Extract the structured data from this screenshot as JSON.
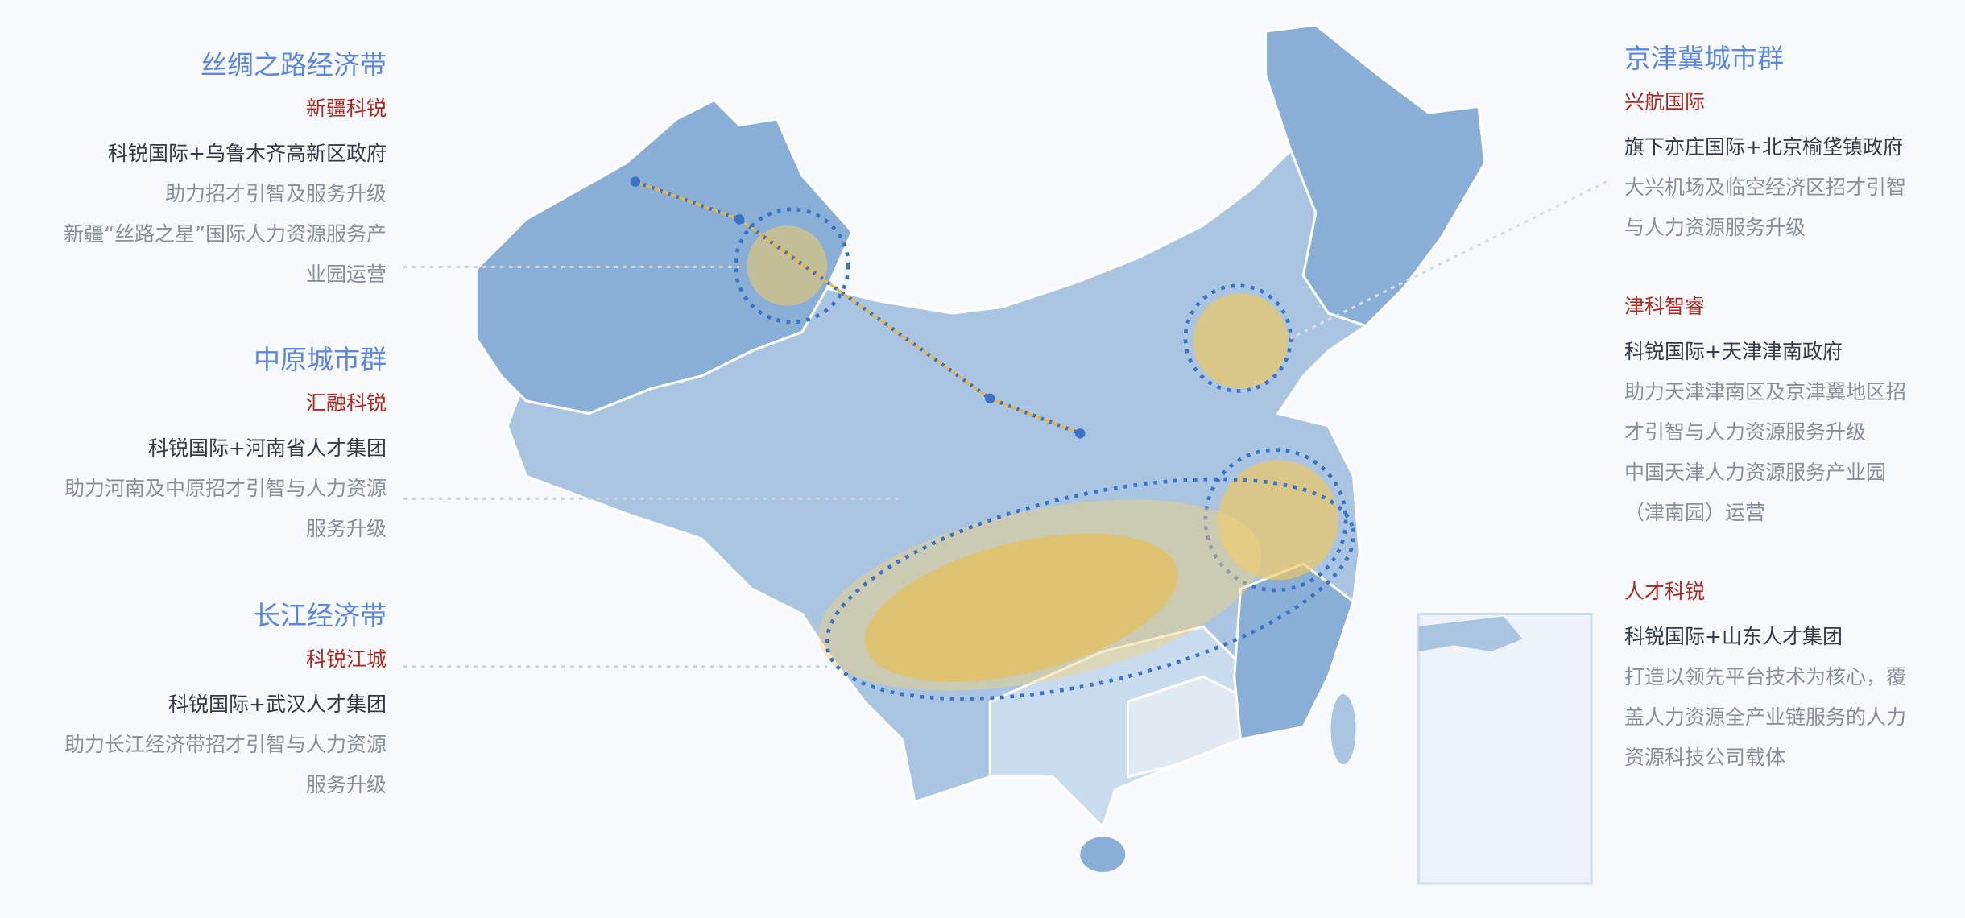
{
  "left_blocks": [
    {
      "title": "丝绸之路经济带",
      "company": "新疆科锐",
      "partner": "科锐国际+乌鲁木齐高新区政府",
      "desc": [
        "助力招才引智及服务升级",
        "新疆“丝路之星”国际人力资源服务产",
        "业园运营"
      ]
    },
    {
      "title": "中原城市群",
      "company": "汇融科锐",
      "partner": "科锐国际+河南省人才集团",
      "desc": [
        "助力河南及中原招才引智与人力资源",
        "服务升级"
      ]
    },
    {
      "title": "长江经济带",
      "company": "科锐江城",
      "partner": "科锐国际+武汉人才集团",
      "desc": [
        "助力长江经济带招才引智与人力资源",
        "服务升级"
      ]
    }
  ],
  "right_block": {
    "title": "京津冀城市群",
    "entries": [
      {
        "company": "兴航国际",
        "partner": "旗下亦庄国际+北京榆垡镇政府",
        "desc": [
          "大兴机场及临空经济区招才引智",
          "与人力资源服务升级"
        ]
      },
      {
        "company": "津科智睿",
        "partner": "科锐国际+天津津南政府",
        "desc": [
          "助力天津津南区及京津翼地区招",
          "才引智与人力资源服务升级",
          "中国天津人力资源服务产业园",
          "（津南园）运营"
        ]
      },
      {
        "company": "人才科锐",
        "partner": "科锐国际+山东人才集团",
        "desc": [
          "打造以领先平台技术为核心，覆",
          "盖人力资源全产业链服务的人力",
          "资源科技公司载体"
        ]
      }
    ]
  },
  "colors": {
    "title": "#5b86e5",
    "company": "#b3261e",
    "map_dark": "#8aafd6",
    "map_mid": "#a9c5e2",
    "map_light": "#c9dbee",
    "highlight": "#f2c85a",
    "dashed": "#3a73c8"
  }
}
